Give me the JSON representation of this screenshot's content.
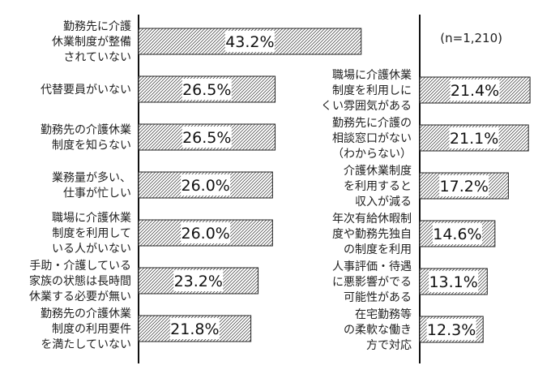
{
  "note": "(n=1,210)",
  "chart_data": [
    {
      "type": "bar",
      "orientation": "horizontal",
      "unit": "%",
      "xlim": [
        0,
        60
      ],
      "categories": [
        "勤務先に介護\n休業制度が整備\nされていない",
        "代替要員がいない",
        "勤務先の介護休業\n制度を知らない",
        "業務量が多い、\n仕事が忙しい",
        "職場に介護休業\n制度を利用して\nいる人がいない",
        "手助・介護している\n家族の状態は長時間\n休業する必要が無い",
        "勤務先の介護休業\n制度の利用要件\nを満たしていない"
      ],
      "values": [
        43.2,
        26.5,
        26.5,
        26.0,
        26.0,
        23.2,
        21.8
      ],
      "value_labels": [
        "43.2%",
        "26.5%",
        "26.5%",
        "26.0%",
        "26.0%",
        "23.2%",
        "21.8%"
      ]
    },
    {
      "type": "bar",
      "orientation": "horizontal",
      "unit": "%",
      "xlim": [
        0,
        60
      ],
      "categories": [
        "職場に介護休業\n制度を利用しに\nくい雰囲気がある",
        "勤務先に介護の\n相談窓口がない\n（わからない）",
        "介護休業制度\nを利用すると\n収入が減る",
        "年次有給休暇制\n度や勤務先独自\nの制度を利用",
        "人事評価・待遇\nに悪影響がでる\n可能性がある",
        "在宅勤務等\nの柔軟な働き\n方で対応"
      ],
      "values": [
        21.4,
        21.1,
        17.2,
        14.6,
        13.1,
        12.3
      ],
      "value_labels": [
        "21.4%",
        "21.1%",
        "17.2%",
        "14.6%",
        "13.1%",
        "12.3%"
      ]
    }
  ]
}
